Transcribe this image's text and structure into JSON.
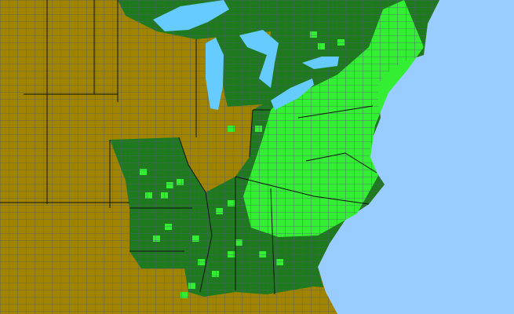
{
  "map": {
    "colors": {
      "ocean": "#99ccff",
      "lakes": "#66ccff",
      "absent_region": "#a08400",
      "present_region": "#1f7a1f",
      "highlight_county": "#33ee33",
      "county_border": "#505a78",
      "state_border": "#111111"
    }
  }
}
